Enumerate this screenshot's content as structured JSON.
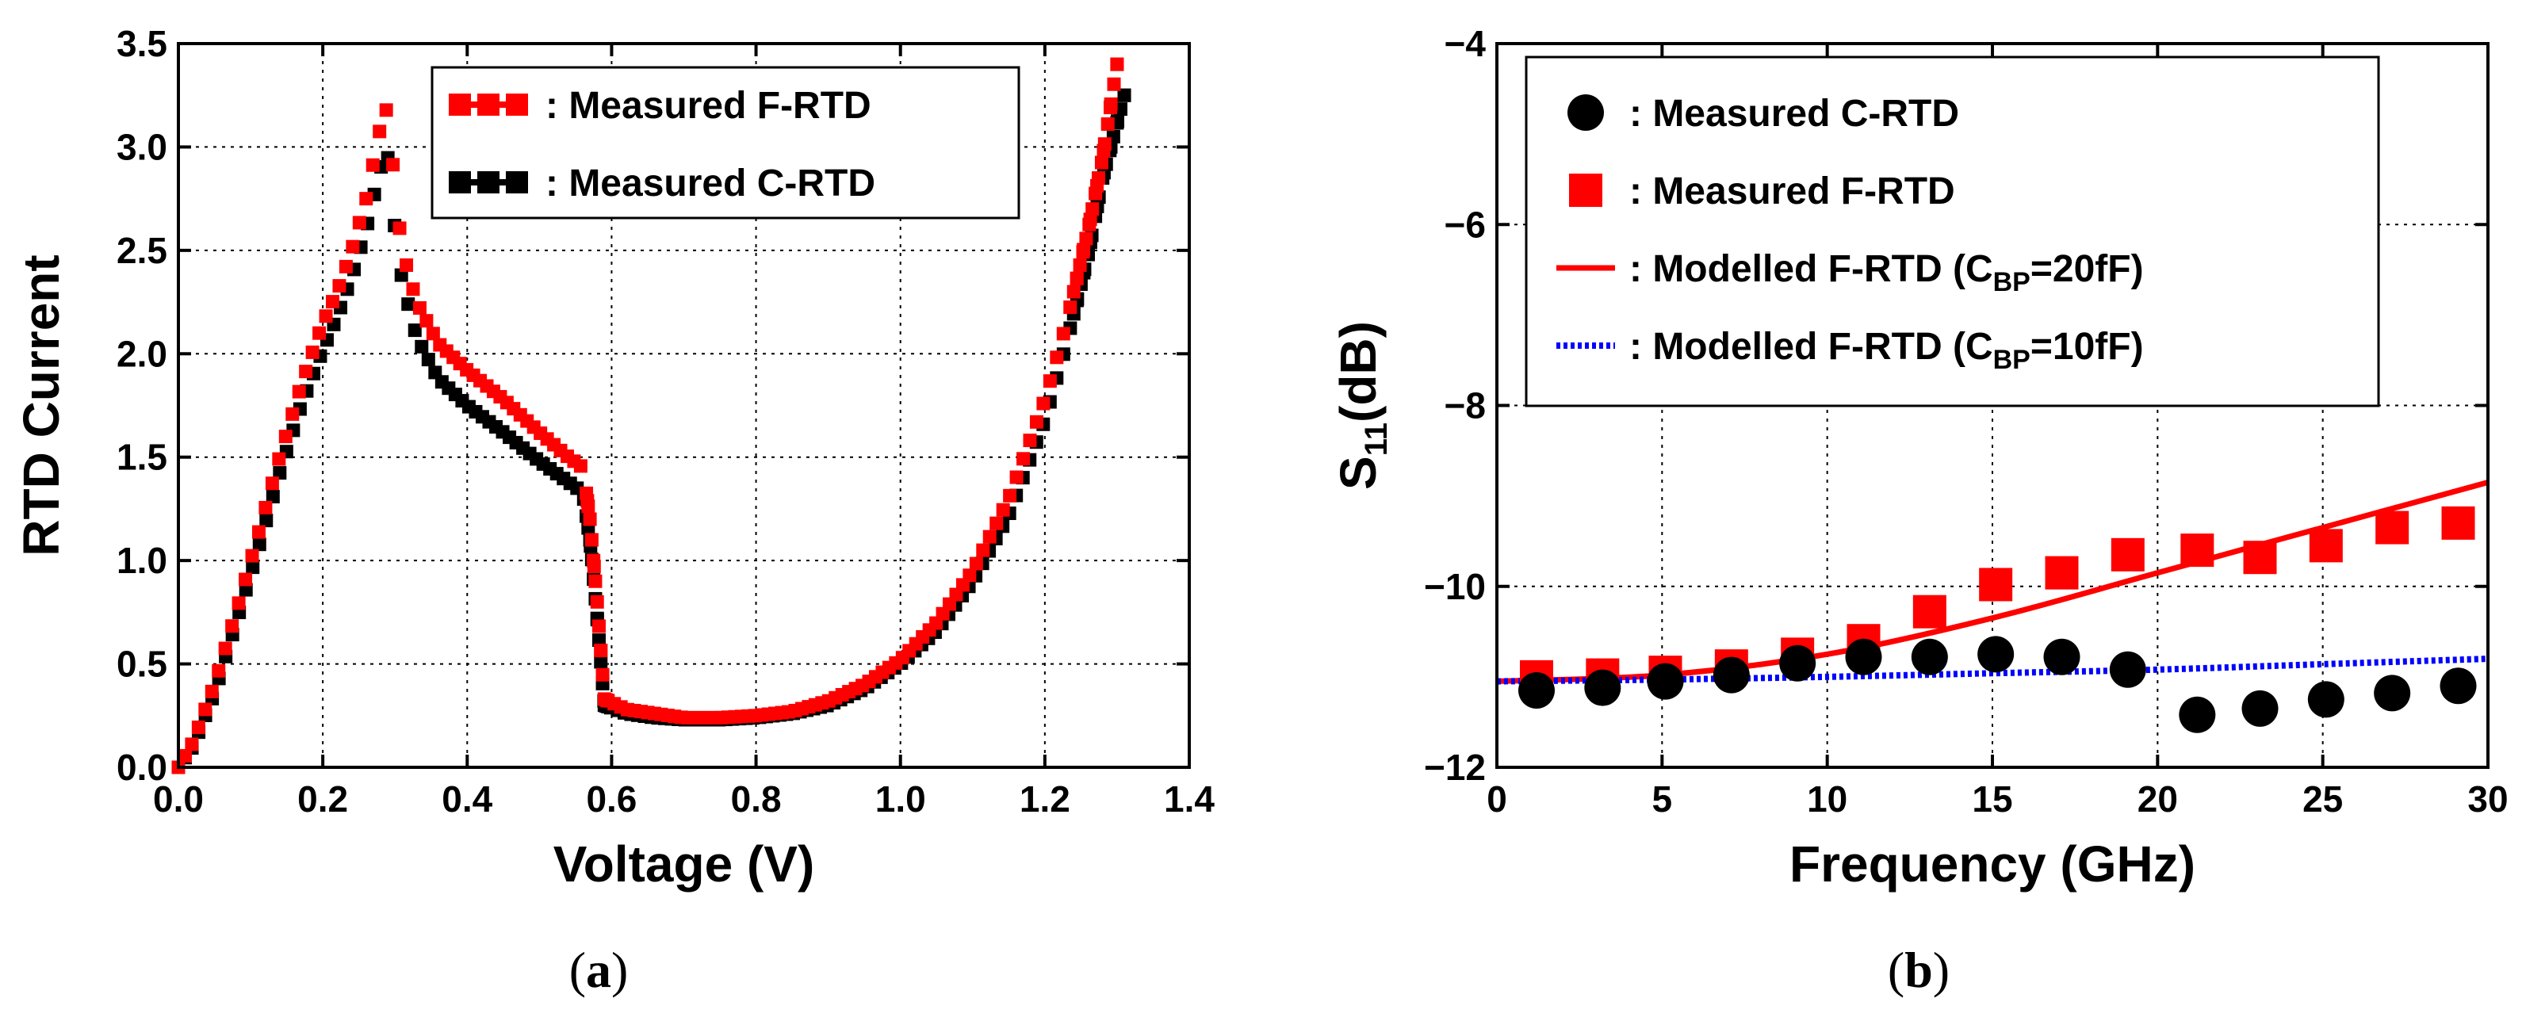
{
  "chart_data": [
    {
      "type": "scatter",
      "panel_label": "a",
      "xlabel": "Voltage (V)",
      "ylabel": "RTD Current",
      "xlim": [
        0.0,
        1.4
      ],
      "ylim": [
        0.0,
        3.5
      ],
      "xticks": [
        "0.0",
        "0.2",
        "0.4",
        "0.6",
        "0.8",
        "1.0",
        "1.2",
        "1.4"
      ],
      "yticks": [
        "0.0",
        "0.5",
        "1.0",
        "1.5",
        "2.0",
        "2.5",
        "3.0",
        "3.5"
      ],
      "grid": true,
      "legend_position": "top-right",
      "legend": [
        {
          "label": ": Measured F-RTD",
          "color": "#ff0000",
          "marker": "square"
        },
        {
          "label": ": Measured C-RTD",
          "color": "#000000",
          "marker": "square"
        }
      ],
      "series": [
        {
          "name": "Measured F-RTD",
          "color": "#ff0000",
          "marker": "square",
          "points": [
            [
              0.0,
              0.0
            ],
            [
              0.02,
              0.12
            ],
            [
              0.05,
              0.4
            ],
            [
              0.08,
              0.75
            ],
            [
              0.11,
              1.12
            ],
            [
              0.14,
              1.5
            ],
            [
              0.17,
              1.85
            ],
            [
              0.2,
              2.15
            ],
            [
              0.22,
              2.3
            ],
            [
              0.24,
              2.5
            ],
            [
              0.26,
              2.75
            ],
            [
              0.28,
              3.1
            ],
            [
              0.29,
              3.2
            ],
            [
              0.3,
              2.8
            ],
            [
              0.31,
              2.5
            ],
            [
              0.33,
              2.25
            ],
            [
              0.36,
              2.05
            ],
            [
              0.4,
              1.92
            ],
            [
              0.45,
              1.78
            ],
            [
              0.5,
              1.62
            ],
            [
              0.54,
              1.5
            ],
            [
              0.56,
              1.45
            ],
            [
              0.57,
              1.2
            ],
            [
              0.58,
              0.8
            ],
            [
              0.59,
              0.33
            ],
            [
              0.62,
              0.28
            ],
            [
              0.66,
              0.26
            ],
            [
              0.7,
              0.24
            ],
            [
              0.75,
              0.24
            ],
            [
              0.8,
              0.25
            ],
            [
              0.85,
              0.27
            ],
            [
              0.9,
              0.32
            ],
            [
              0.95,
              0.4
            ],
            [
              1.0,
              0.52
            ],
            [
              1.05,
              0.7
            ],
            [
              1.1,
              0.95
            ],
            [
              1.15,
              1.3
            ],
            [
              1.2,
              1.78
            ],
            [
              1.23,
              2.15
            ],
            [
              1.26,
              2.6
            ],
            [
              1.28,
              2.95
            ],
            [
              1.3,
              3.4
            ]
          ]
        },
        {
          "name": "Measured C-RTD",
          "color": "#000000",
          "marker": "square",
          "points": [
            [
              0.0,
              0.0
            ],
            [
              0.02,
              0.1
            ],
            [
              0.05,
              0.36
            ],
            [
              0.08,
              0.7
            ],
            [
              0.11,
              1.05
            ],
            [
              0.14,
              1.42
            ],
            [
              0.17,
              1.75
            ],
            [
              0.2,
              2.02
            ],
            [
              0.22,
              2.18
            ],
            [
              0.24,
              2.37
            ],
            [
              0.26,
              2.6
            ],
            [
              0.28,
              2.9
            ],
            [
              0.29,
              2.95
            ],
            [
              0.3,
              2.6
            ],
            [
              0.31,
              2.35
            ],
            [
              0.33,
              2.08
            ],
            [
              0.36,
              1.88
            ],
            [
              0.4,
              1.75
            ],
            [
              0.45,
              1.62
            ],
            [
              0.5,
              1.48
            ],
            [
              0.54,
              1.38
            ],
            [
              0.56,
              1.33
            ],
            [
              0.57,
              1.1
            ],
            [
              0.58,
              0.72
            ],
            [
              0.59,
              0.3
            ],
            [
              0.62,
              0.26
            ],
            [
              0.66,
              0.24
            ],
            [
              0.7,
              0.23
            ],
            [
              0.75,
              0.23
            ],
            [
              0.8,
              0.24
            ],
            [
              0.85,
              0.26
            ],
            [
              0.9,
              0.3
            ],
            [
              0.95,
              0.38
            ],
            [
              1.0,
              0.5
            ],
            [
              1.05,
              0.66
            ],
            [
              1.1,
              0.9
            ],
            [
              1.15,
              1.22
            ],
            [
              1.2,
              1.68
            ],
            [
              1.23,
              2.05
            ],
            [
              1.26,
              2.48
            ],
            [
              1.28,
              2.85
            ],
            [
              1.31,
              3.25
            ]
          ]
        }
      ]
    },
    {
      "type": "scatter",
      "panel_label": "b",
      "xlabel": "Frequency (GHz)",
      "ylabel": "S",
      "ylabel_sub": "11",
      "ylabel_suffix": "(dB)",
      "xlim": [
        0,
        30
      ],
      "ylim": [
        -12,
        -4
      ],
      "xticks": [
        "0",
        "5",
        "10",
        "15",
        "20",
        "25",
        "30"
      ],
      "yticks": [
        "-12",
        "-10",
        "-8",
        "-6",
        "-4"
      ],
      "grid": true,
      "legend_position": "top-right",
      "legend": [
        {
          "label": ": Measured C-RTD",
          "color": "#000000",
          "marker": "circle"
        },
        {
          "label": ": Measured F-RTD",
          "color": "#ff0000",
          "marker": "square"
        },
        {
          "label": ": Modelled F-RTD (C",
          "sub": "BP",
          "tail": "=20fF)",
          "color": "#ff0000",
          "marker": "line"
        },
        {
          "label": ": Modelled F-RTD (C",
          "sub": "BP",
          "tail": "=10fF)",
          "color": "#0000ff",
          "marker": "dotted-line"
        }
      ],
      "series": [
        {
          "name": "Measured C-RTD",
          "color": "#000000",
          "marker": "circle",
          "x": [
            1.2,
            3.2,
            5.1,
            7.1,
            9.1,
            11.1,
            13.1,
            15.1,
            17.1,
            19.1,
            21.2,
            23.1,
            25.1,
            27.1,
            29.1
          ],
          "y": [
            -11.15,
            -11.12,
            -11.05,
            -10.98,
            -10.85,
            -10.78,
            -10.78,
            -10.75,
            -10.78,
            -10.92,
            -11.42,
            -11.35,
            -11.25,
            -11.18,
            -11.1
          ]
        },
        {
          "name": "Measured F-RTD",
          "color": "#ff0000",
          "marker": "square",
          "x": [
            1.2,
            3.2,
            5.1,
            7.1,
            9.1,
            11.1,
            13.1,
            15.1,
            17.1,
            19.1,
            21.2,
            23.1,
            25.1,
            27.1,
            29.1
          ],
          "y": [
            -11.0,
            -10.98,
            -10.95,
            -10.88,
            -10.75,
            -10.6,
            -10.28,
            -9.98,
            -9.85,
            -9.65,
            -9.6,
            -9.68,
            -9.55,
            -9.35,
            -9.3
          ]
        },
        {
          "name": "Modelled F-RTD (CBP=20fF)",
          "color": "#ff0000",
          "marker": "line",
          "x": [
            0,
            5,
            10,
            15,
            20,
            25,
            30
          ],
          "y": [
            -11.05,
            -10.98,
            -10.75,
            -10.35,
            -9.85,
            -9.35,
            -8.85
          ]
        },
        {
          "name": "Modelled F-RTD (CBP=10fF)",
          "color": "#0000ff",
          "marker": "dotted-line",
          "x": [
            0,
            5,
            10,
            15,
            20,
            25,
            30
          ],
          "y": [
            -11.05,
            -11.03,
            -11.0,
            -10.96,
            -10.92,
            -10.86,
            -10.8
          ]
        }
      ]
    }
  ]
}
